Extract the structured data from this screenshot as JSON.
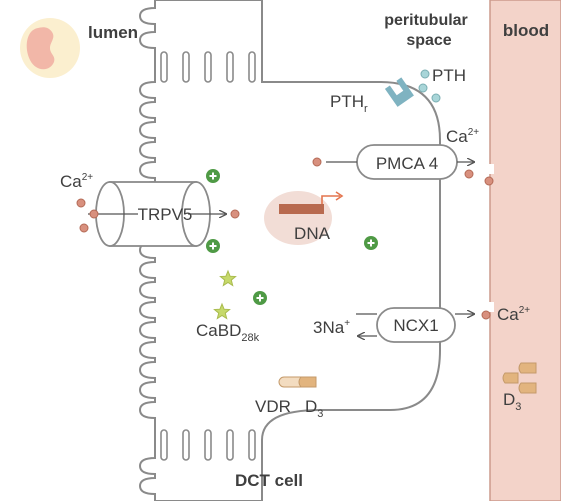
{
  "labels": {
    "lumen": "lumen",
    "peritubular_line1": "peritubular",
    "peritubular_line2": "space",
    "blood": "blood",
    "cell": "DCT cell",
    "trpv5": "TRPV5",
    "pmca4": "PMCA 4",
    "ncx1": "NCX1",
    "dna": "DNA",
    "cabd_main": "CaBD",
    "cabd_sub": "28k",
    "vdr": "VDR",
    "d3_cell_main": "D",
    "d3_cell_sub": "3",
    "d3_blood_main": "D",
    "d3_blood_sub": "3",
    "pth": "PTH",
    "pthr_main": "PTH",
    "pthr_sub": "r",
    "ca_lumen_main": "Ca",
    "ca_lumen_sup": "2+",
    "ca_pmca_main": "Ca",
    "ca_pmca_sup": "2+",
    "ca_ncx_main": "Ca",
    "ca_ncx_sup": "2+",
    "na_main": "3Na",
    "na_sup": "+"
  },
  "colors": {
    "cell_outline": "#8a8a8a",
    "blood_fill": "#f3d3c9",
    "blood_outline": "#cc9a8c",
    "calcium_dot": "#d8907e",
    "calcium_outline": "#b46a56",
    "pth_dot": "#a8d5d8",
    "receptor": "#7fb3c1",
    "plus_circle": "#4f9a45",
    "star": "#c6d96a",
    "dna_blob": "#f2ddd6",
    "dna_bar": "#b86a4f",
    "dna_arrow": "#e4754e",
    "vitamin_d": "#e2b47e",
    "kidney_bg": "#fbefcf",
    "kidney": "#f2b7a8"
  },
  "icons": {
    "kidney": "kidney-icon",
    "plus": "plus-circle-icon",
    "star": "star-icon",
    "receptor": "receptor-icon",
    "arrow": "arrow-icon"
  }
}
